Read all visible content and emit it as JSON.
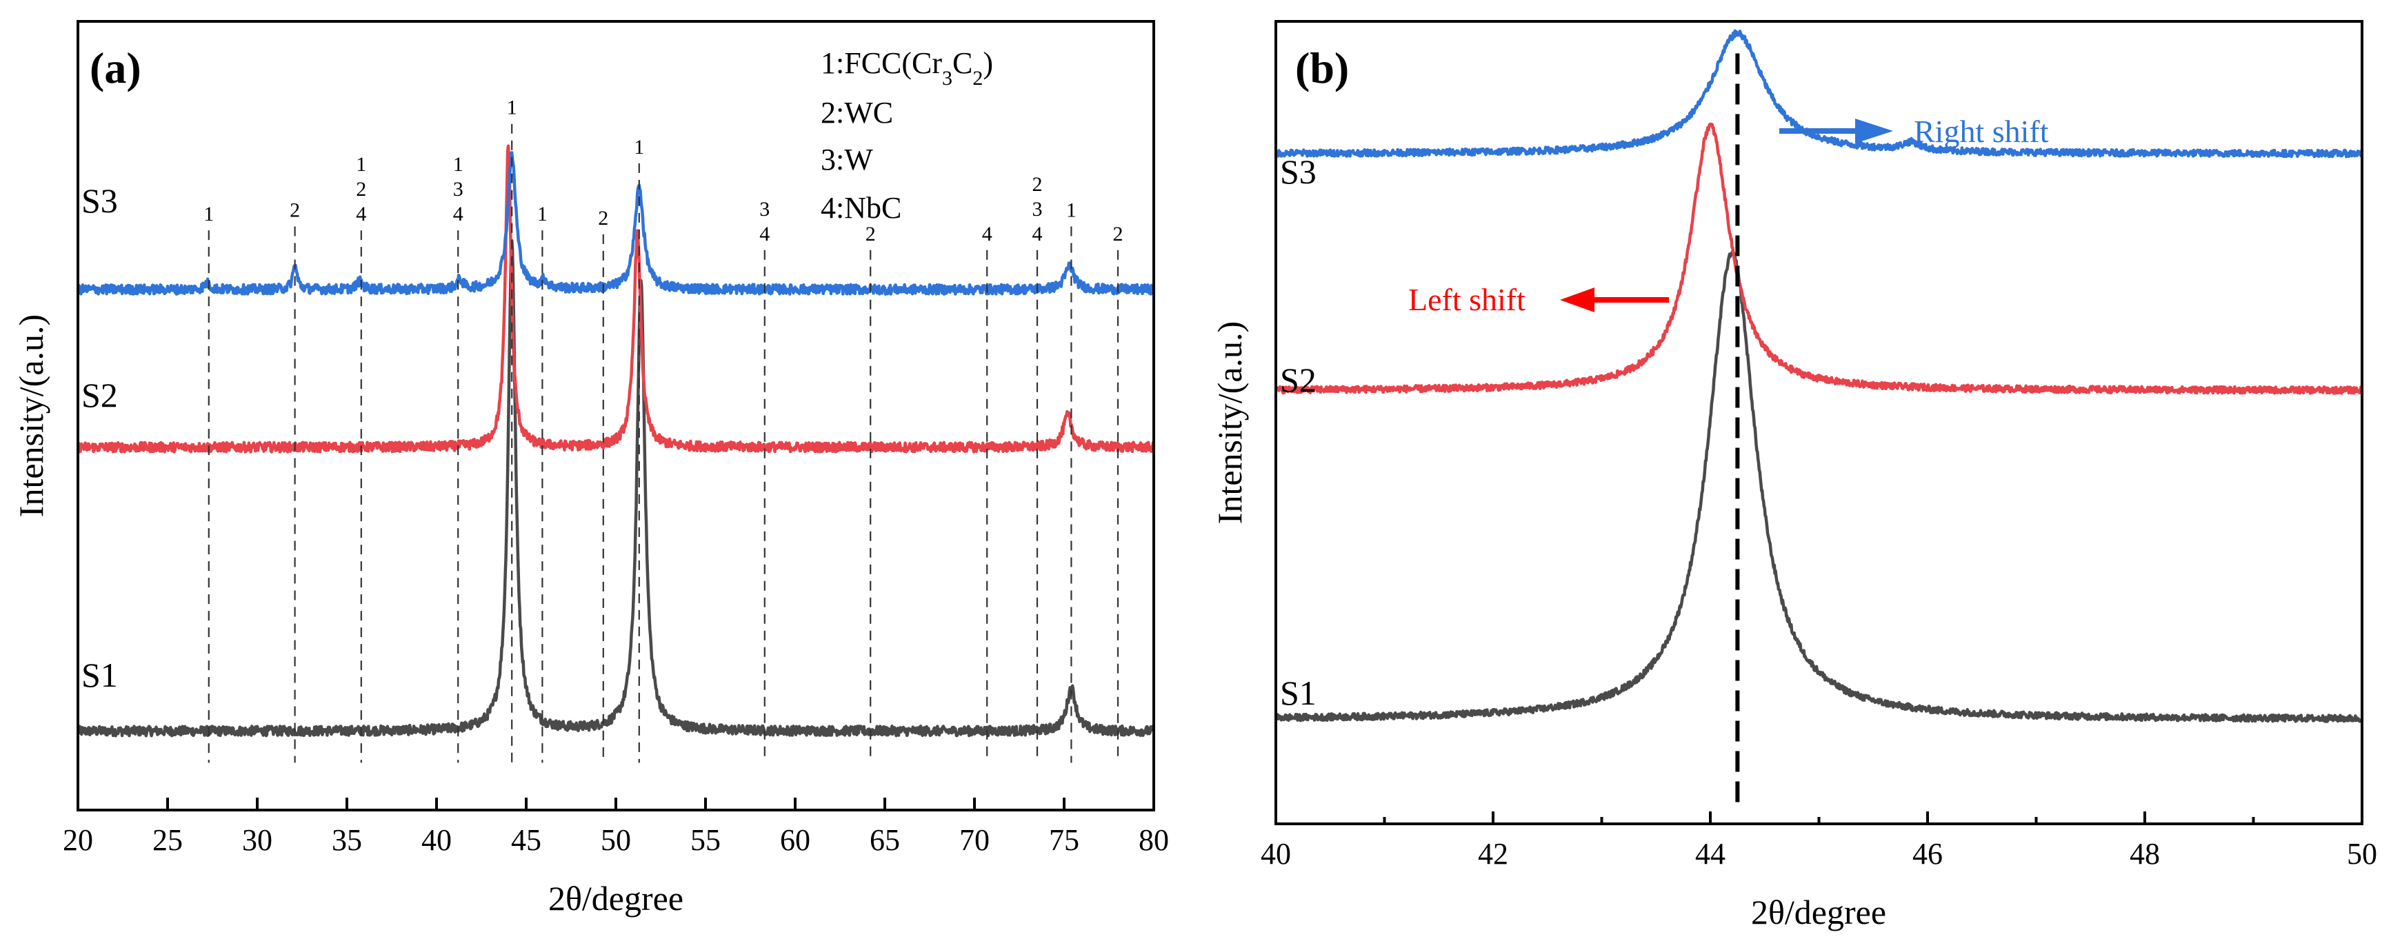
{
  "chart_data": [
    {
      "type": "line",
      "panel_label": "(a)",
      "xlabel": "2θ/degree",
      "ylabel": "Intensity/(a.u.)",
      "xlim": [
        20,
        80
      ],
      "x_ticks": [
        20,
        25,
        30,
        35,
        40,
        45,
        50,
        55,
        60,
        65,
        70,
        75,
        80
      ],
      "y_ticks": "none",
      "grid": false,
      "legend": {
        "placement": "top-right",
        "entries": [
          {
            "label": "1:FCC(Cr",
            "sub1": "3",
            "mid": "C",
            "sub2": "2",
            "end": ")"
          },
          {
            "label": "2:WC"
          },
          {
            "label": "3:W"
          },
          {
            "label": "4:NbC"
          }
        ]
      },
      "series": [
        {
          "name": "S1",
          "color": "#4a4a4a",
          "baseline": 0.1,
          "noise": 0.006,
          "peaks": [
            {
              "x": 44.2,
              "h": 0.62,
              "w": 0.25
            },
            {
              "x": 51.4,
              "h": 0.57,
              "w": 0.27
            },
            {
              "x": 75.4,
              "h": 0.055,
              "w": 0.3
            }
          ]
        },
        {
          "name": "S2",
          "color": "#e8424a",
          "baseline": 0.46,
          "noise": 0.006,
          "peaks": [
            {
              "x": 44.0,
              "h": 0.38,
              "w": 0.2
            },
            {
              "x": 51.2,
              "h": 0.27,
              "w": 0.24
            },
            {
              "x": 75.2,
              "h": 0.04,
              "w": 0.3
            }
          ]
        },
        {
          "name": "S3",
          "color": "#2f74d9",
          "baseline": 0.66,
          "noise": 0.006,
          "peaks": [
            {
              "x": 27.2,
              "h": 0.008,
              "w": 0.2
            },
            {
              "x": 32.1,
              "h": 0.03,
              "w": 0.15
            },
            {
              "x": 35.7,
              "h": 0.01,
              "w": 0.2
            },
            {
              "x": 41.3,
              "h": 0.012,
              "w": 0.2
            },
            {
              "x": 44.2,
              "h": 0.17,
              "w": 0.28
            },
            {
              "x": 46.0,
              "h": 0.01,
              "w": 0.2
            },
            {
              "x": 51.3,
              "h": 0.13,
              "w": 0.3
            },
            {
              "x": 75.3,
              "h": 0.03,
              "w": 0.3
            }
          ]
        }
      ],
      "phase_markers": [
        {
          "x": 27.3,
          "labels": [
            "1"
          ],
          "top": 0.735
        },
        {
          "x": 32.1,
          "labels": [
            "2"
          ],
          "top": 0.74
        },
        {
          "x": 35.8,
          "labels": [
            "1",
            "2",
            "4"
          ],
          "top": 0.735
        },
        {
          "x": 41.2,
          "labels": [
            "1",
            "3",
            "4"
          ],
          "top": 0.735
        },
        {
          "x": 44.2,
          "labels": [
            "1"
          ],
          "top": 0.87
        },
        {
          "x": 45.9,
          "labels": [
            "1"
          ],
          "top": 0.735
        },
        {
          "x": 49.3,
          "labels": [
            "2"
          ],
          "top": 0.73
        },
        {
          "x": 51.3,
          "labels": [
            "1"
          ],
          "top": 0.82
        },
        {
          "x": 58.3,
          "labels": [
            "3",
            "4"
          ],
          "top": 0.71
        },
        {
          "x": 64.2,
          "labels": [
            "2"
          ],
          "top": 0.71
        },
        {
          "x": 70.7,
          "labels": [
            "4"
          ],
          "top": 0.71
        },
        {
          "x": 73.5,
          "labels": [
            "2",
            "3",
            "4"
          ],
          "top": 0.71
        },
        {
          "x": 75.4,
          "labels": [
            "1"
          ],
          "top": 0.74
        },
        {
          "x": 78.0,
          "labels": [
            "2"
          ],
          "top": 0.71
        }
      ],
      "markers_bottom": 0.06
    },
    {
      "type": "line",
      "panel_label": "(b)",
      "xlabel": "2θ/degree",
      "ylabel": "Intensity/(a.u.)",
      "xlim": [
        40,
        50
      ],
      "x_ticks": [
        40,
        42,
        44,
        46,
        48,
        50
      ],
      "x_minor_step": 1,
      "y_ticks": "none",
      "grid": false,
      "series": [
        {
          "name": "S1",
          "color": "#4a4a4a",
          "baseline": 0.13,
          "noise": 0.004,
          "peaks": [
            {
              "x": 44.2,
              "h": 0.58,
              "w": 0.27
            }
          ]
        },
        {
          "name": "S2",
          "color": "#e8424a",
          "baseline": 0.54,
          "noise": 0.004,
          "peaks": [
            {
              "x": 44.0,
              "h": 0.33,
              "w": 0.22
            }
          ]
        },
        {
          "name": "S3",
          "color": "#2f74d9",
          "baseline": 0.835,
          "noise": 0.004,
          "peaks": [
            {
              "x": 44.25,
              "h": 0.15,
              "w": 0.3
            },
            {
              "x": 45.85,
              "h": 0.01,
              "w": 0.1
            }
          ]
        }
      ],
      "reference_line": {
        "x": 44.25,
        "y_bottom": 0.02,
        "y_top": 0.96
      },
      "annotations": [
        {
          "text": "Right shift",
          "color": "#2f74d9"
        },
        {
          "text": "Left shift",
          "color": "#ff0000"
        }
      ]
    }
  ]
}
